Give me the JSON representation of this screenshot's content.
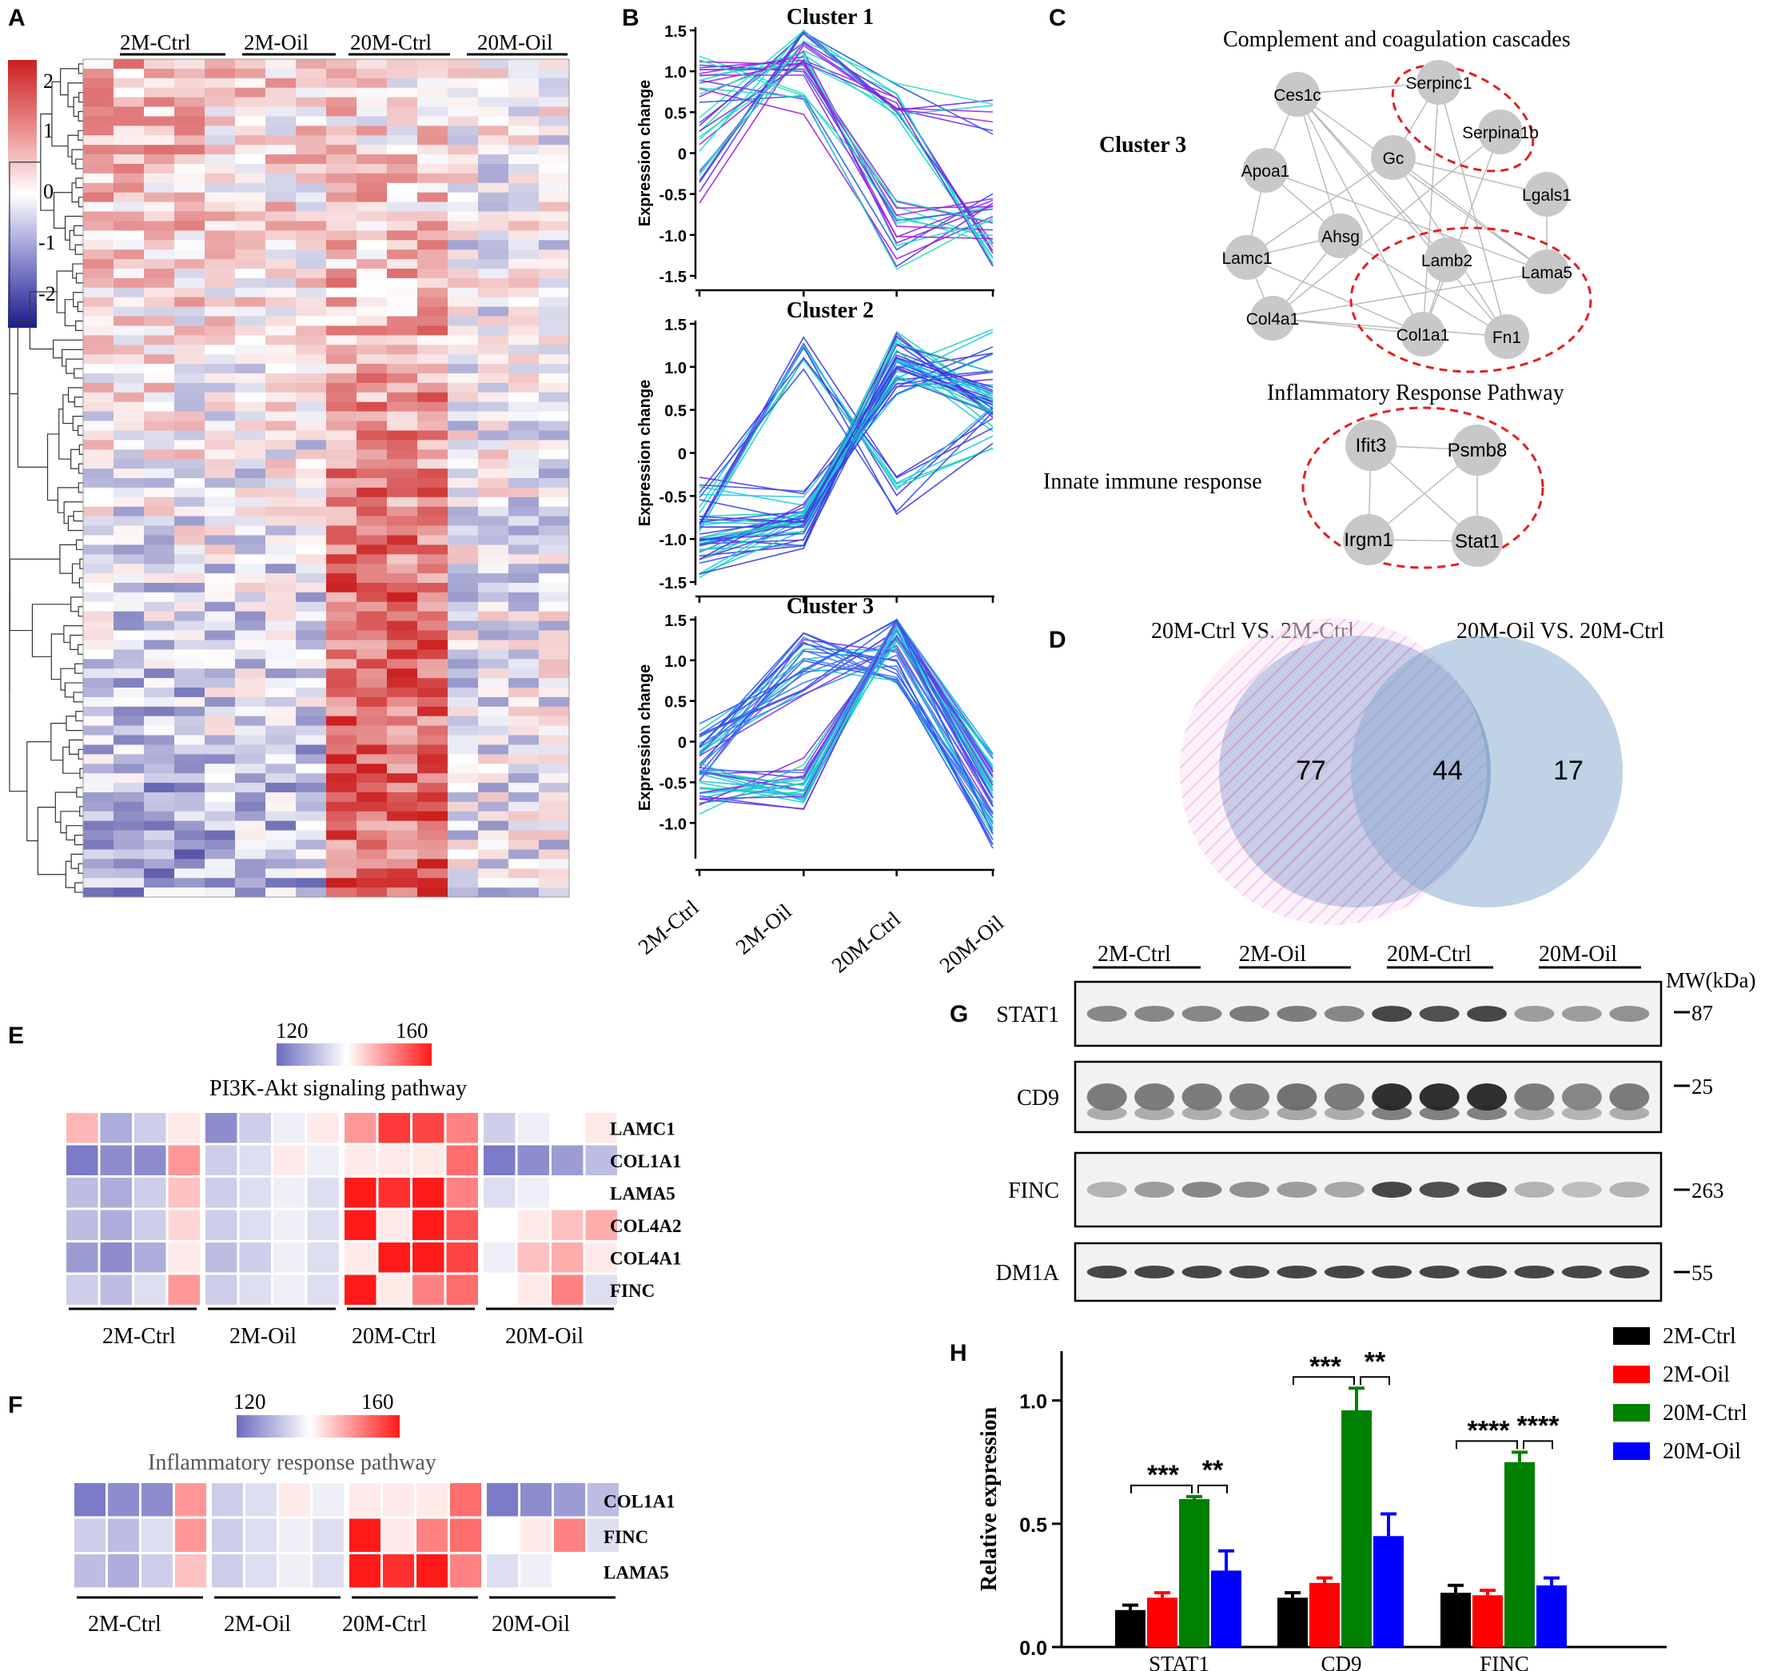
{
  "panels": {
    "a": "A",
    "b": "B",
    "c": "C",
    "d": "D",
    "e": "E",
    "f": "F",
    "g": "G",
    "h": "H"
  },
  "groups": [
    "2M-Ctrl",
    "2M-Oil",
    "20M-Ctrl",
    "20M-Oil"
  ],
  "heatmap_a": {
    "colorbar_ticks": [
      "2",
      "1",
      "0",
      "-1",
      "-2"
    ],
    "rows": 88,
    "cols": 16,
    "low_color": "#1a1a8c",
    "mid_color": "#ffffff",
    "high_color": "#cc1f1f"
  },
  "clusters": [
    {
      "title": "Cluster 1",
      "ylabel": "Expression change",
      "yticks": [
        "1.5",
        "1.0",
        "0.5",
        "0",
        "-0.5",
        "-1.0",
        "-1.5"
      ],
      "ylim": [
        -1.5,
        1.5
      ]
    },
    {
      "title": "Cluster 2",
      "ylabel": "Expression change",
      "yticks": [
        "1.5",
        "1.0",
        "0.5",
        "0",
        "-0.5",
        "-1.0",
        "-1.5"
      ],
      "ylim": [
        -1.5,
        1.5
      ]
    },
    {
      "title": "Cluster 3",
      "ylabel": "Expression change",
      "yticks": [
        "1.5",
        "1.0",
        "0.5",
        "0",
        "-0.5",
        "-1.0"
      ],
      "ylim": [
        -1.4,
        1.5
      ]
    }
  ],
  "network": {
    "title1": "Complement and coagulation cascades",
    "cluster_label": "Cluster 3",
    "title2": "Inflammatory Response Pathway",
    "side_label": "Innate immune response",
    "nodes": [
      "Ces1c",
      "Serpinc1",
      "Serpina1b",
      "Gc",
      "Apoa1",
      "Lgals1",
      "Ahsg",
      "Lamc1",
      "Lamb2",
      "Lama5",
      "Col4a1",
      "Col1a1",
      "Fn1",
      "Ifit3",
      "Psmb8",
      "Irgm1",
      "Stat1"
    ]
  },
  "venn": {
    "label_left": "20M-Ctrl VS. 2M-Ctrl",
    "label_right": "20M-Oil VS. 20M-Ctrl",
    "left_only": "77",
    "both": "44",
    "right_only": "17"
  },
  "heat_e": {
    "scale_min": "120",
    "scale_max": "160",
    "title": "PI3K-Akt signaling pathway",
    "genes": [
      "LAMC1",
      "COL1A1",
      "LAMA5",
      "COL4A2",
      "COL4A1",
      "FINC"
    ],
    "values": [
      [
        145,
        128,
        132,
        140,
        124,
        132,
        136,
        140,
        148,
        157,
        156,
        150,
        132,
        136,
        138,
        140
      ],
      [
        122,
        124,
        124,
        148,
        132,
        134,
        140,
        136,
        140,
        140,
        140,
        152,
        122,
        124,
        126,
        130
      ],
      [
        130,
        128,
        132,
        144,
        132,
        134,
        136,
        134,
        160,
        158,
        160,
        150,
        134,
        136,
        138,
        138
      ],
      [
        130,
        128,
        132,
        142,
        132,
        134,
        136,
        134,
        160,
        140,
        160,
        154,
        138,
        140,
        144,
        146
      ],
      [
        126,
        124,
        128,
        140,
        130,
        132,
        136,
        134,
        140,
        160,
        160,
        156,
        136,
        144,
        146,
        140
      ],
      [
        132,
        130,
        134,
        148,
        132,
        134,
        136,
        134,
        160,
        140,
        150,
        152,
        138,
        140,
        150,
        134
      ]
    ]
  },
  "heat_f": {
    "scale_min": "120",
    "scale_max": "160",
    "title": "Inflammatory response pathway",
    "genes": [
      "COL1A1",
      "FINC",
      "LAMA5"
    ],
    "values": [
      [
        122,
        124,
        124,
        148,
        132,
        134,
        140,
        136,
        140,
        140,
        140,
        152,
        122,
        124,
        126,
        130
      ],
      [
        132,
        130,
        134,
        148,
        132,
        134,
        136,
        134,
        160,
        140,
        150,
        152,
        138,
        140,
        150,
        134
      ],
      [
        130,
        128,
        132,
        144,
        132,
        134,
        136,
        134,
        160,
        158,
        160,
        150,
        134,
        136,
        138,
        138
      ]
    ]
  },
  "blot": {
    "mw_label": "MW(kDa)",
    "bands": [
      {
        "name": "STAT1",
        "mw": "87",
        "intensity": [
          0.55,
          0.55,
          0.55,
          0.6,
          0.6,
          0.55,
          0.85,
          0.8,
          0.85,
          0.45,
          0.45,
          0.5
        ]
      },
      {
        "name": "CD9",
        "mw": "25",
        "intensity": [
          0.6,
          0.6,
          0.6,
          0.6,
          0.65,
          0.6,
          0.95,
          0.95,
          0.95,
          0.6,
          0.55,
          0.6
        ]
      },
      {
        "name": "FINC",
        "mw": "263",
        "intensity": [
          0.35,
          0.45,
          0.55,
          0.5,
          0.45,
          0.4,
          0.85,
          0.8,
          0.8,
          0.35,
          0.3,
          0.35
        ]
      },
      {
        "name": "DM1A",
        "mw": "55",
        "intensity": [
          0.85,
          0.85,
          0.85,
          0.85,
          0.85,
          0.85,
          0.85,
          0.85,
          0.85,
          0.85,
          0.85,
          0.85
        ]
      }
    ]
  },
  "chart_data": {
    "type": "bar",
    "ylabel": "Relative expression",
    "categories": [
      "STAT1",
      "CD9",
      "FINC"
    ],
    "ylim": [
      0,
      1.2
    ],
    "yticks": [
      "0.0",
      "0.5",
      "1.0"
    ],
    "series": [
      {
        "name": "2M-Ctrl",
        "color": "#000000",
        "values": [
          0.15,
          0.2,
          0.22
        ],
        "errors": [
          0.02,
          0.02,
          0.03
        ]
      },
      {
        "name": "2M-Oil",
        "color": "#ff0000",
        "values": [
          0.2,
          0.26,
          0.21
        ],
        "errors": [
          0.02,
          0.02,
          0.02
        ]
      },
      {
        "name": "20M-Ctrl",
        "color": "#008000",
        "values": [
          0.6,
          0.96,
          0.75
        ],
        "errors": [
          0.01,
          0.09,
          0.04
        ]
      },
      {
        "name": "20M-Oil",
        "color": "#0000ff",
        "values": [
          0.31,
          0.45,
          0.25
        ],
        "errors": [
          0.08,
          0.09,
          0.03
        ]
      }
    ],
    "significance": [
      {
        "category": "STAT1",
        "left": "***",
        "right": "**"
      },
      {
        "category": "CD9",
        "left": "***",
        "right": "**"
      },
      {
        "category": "FINC",
        "left": "****",
        "right": "****"
      }
    ]
  }
}
